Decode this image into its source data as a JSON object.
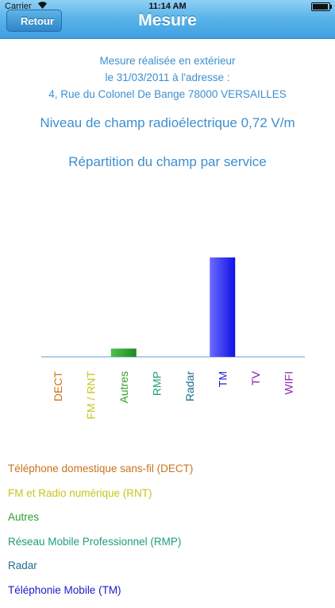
{
  "status_bar": {
    "carrier": "Carrier",
    "time": "11:14 AM"
  },
  "nav": {
    "title": "Mesure",
    "back_label": "Retour"
  },
  "info": {
    "line1": "Mesure réalisée en extérieur",
    "line2": "le 31/03/2011 à l'adresse :",
    "line3": "4, Rue du Colonel De Bange 78000 VERSAILLES"
  },
  "headline": "Niveau de champ radioélectrique 0,72 V/m",
  "subhead": "Répartition du champ par service",
  "chart_data": {
    "type": "bar",
    "categories": [
      "DECT",
      "FM / RNT",
      "Autres",
      "RMP",
      "Radar",
      "TM",
      "TV",
      "WIFI"
    ],
    "values": [
      0,
      0,
      0.06,
      0,
      0,
      0.72,
      0,
      0
    ],
    "colors": [
      "#c8731c",
      "#c9c41a",
      "#2e9e2e",
      "#1c9e7e",
      "#1c6e8e",
      "#1b1bcc",
      "#7a1ea8",
      "#8e2ab0"
    ],
    "title": "Répartition du champ par service",
    "ylim": [
      0,
      0.8
    ],
    "grid": false
  },
  "legend": [
    {
      "label": "Téléphone domestique sans-fil (DECT)",
      "color": "#c8731c"
    },
    {
      "label": "FM et Radio numérique (RNT)",
      "color": "#c9c41a"
    },
    {
      "label": "Autres",
      "color": "#2e9e2e"
    },
    {
      "label": "Réseau Mobile Professionnel (RMP)",
      "color": "#1c9e7e"
    },
    {
      "label": "Radar",
      "color": "#1c6e8e"
    },
    {
      "label": "Téléphonie Mobile (TM)",
      "color": "#1b1bcc"
    }
  ]
}
